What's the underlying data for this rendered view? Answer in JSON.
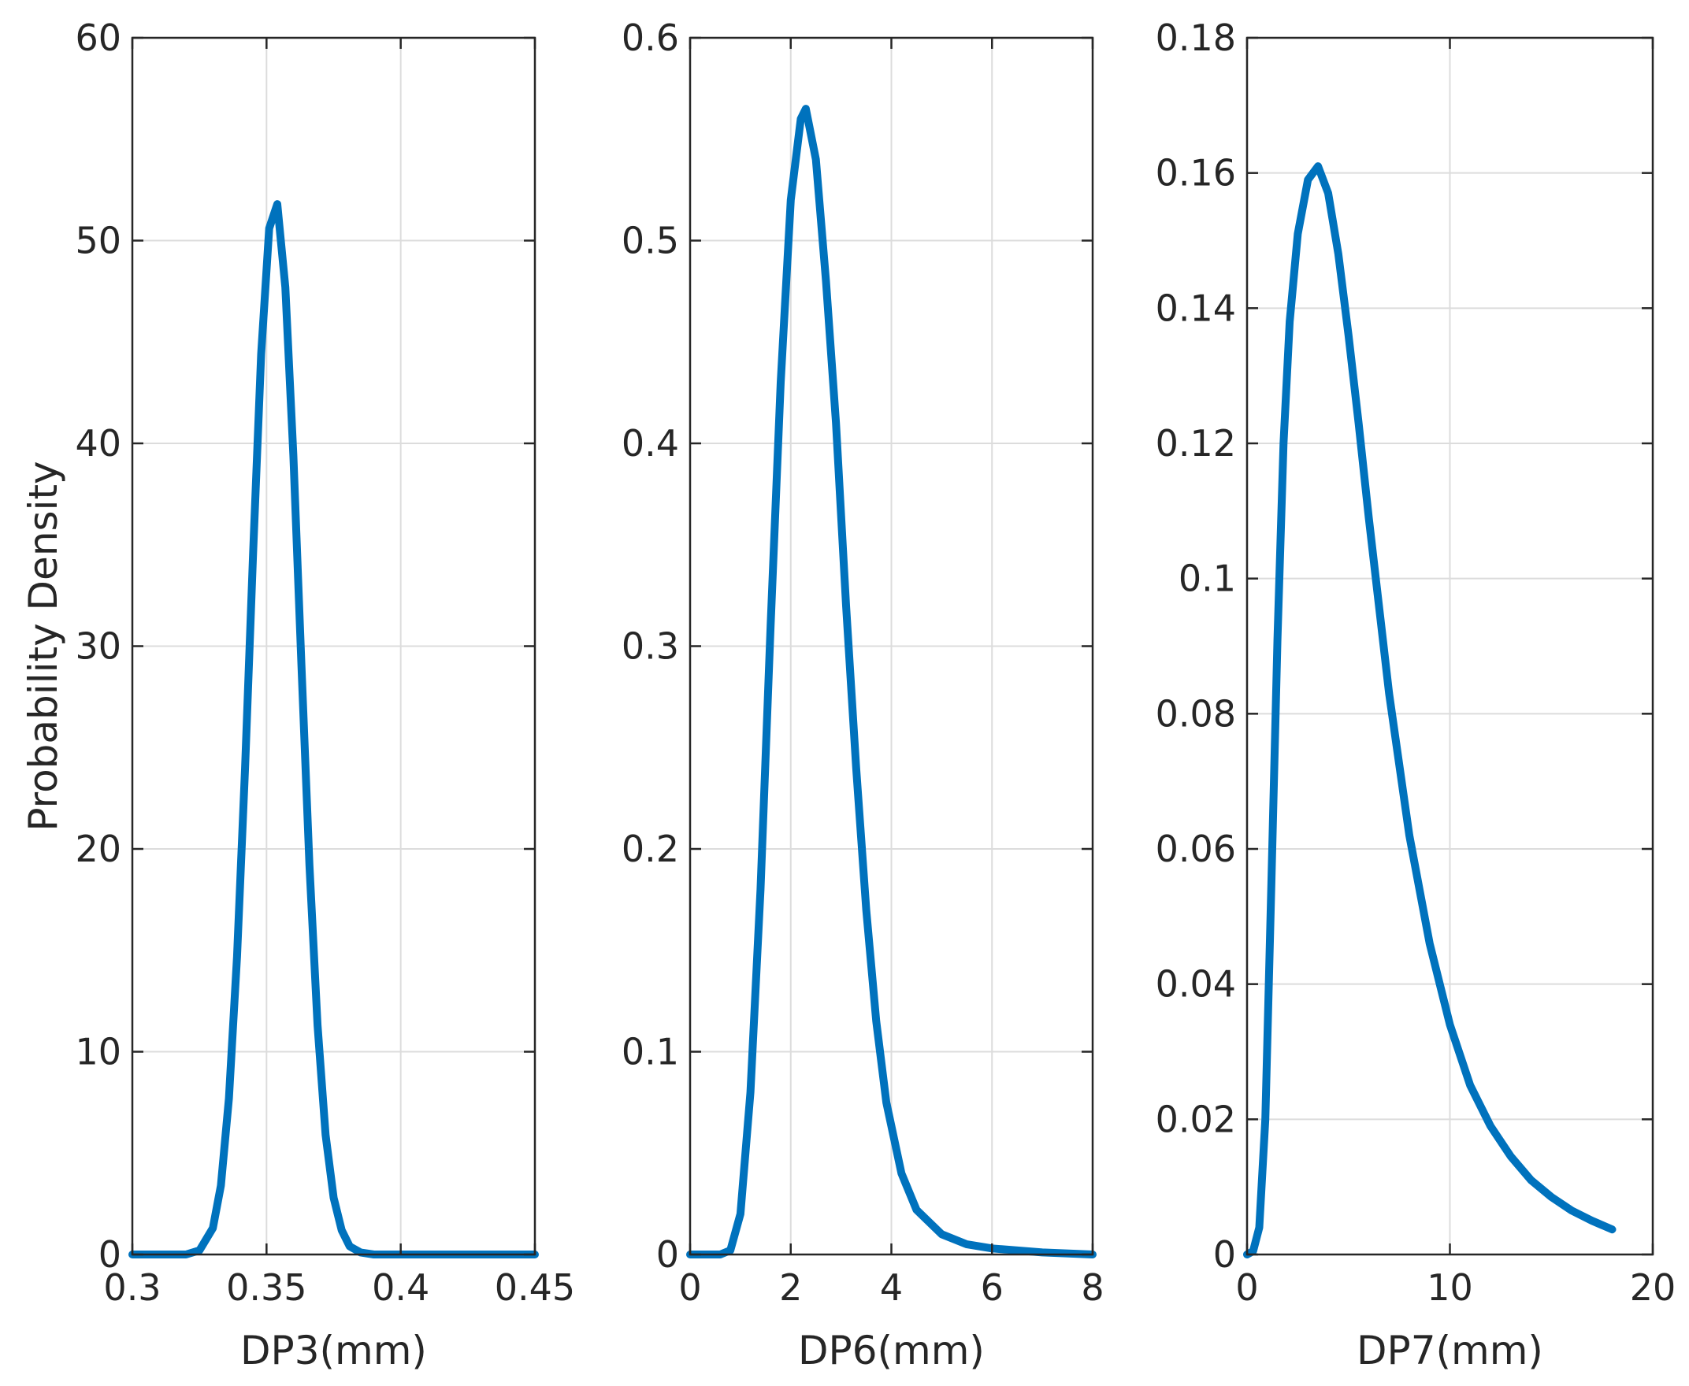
{
  "chart_data": [
    {
      "type": "line",
      "title": "",
      "xlabel": "DP3(mm)",
      "ylabel": "Probability Density",
      "xlim": [
        0.3,
        0.45
      ],
      "ylim": [
        0,
        60
      ],
      "xticks": [
        0.3,
        0.35,
        0.4,
        0.45
      ],
      "xtick_labels": [
        "0.3",
        "0.35",
        "0.4",
        "0.45"
      ],
      "yticks": [
        0,
        10,
        20,
        30,
        40,
        50,
        60
      ],
      "ytick_labels": [
        "0",
        "10",
        "20",
        "30",
        "40",
        "50",
        "60"
      ],
      "grid": true,
      "color": "#0072BD",
      "series": [
        {
          "x": [
            0.3,
            0.32,
            0.325,
            0.33,
            0.333,
            0.336,
            0.339,
            0.342,
            0.345,
            0.348,
            0.351,
            0.354,
            0.357,
            0.36,
            0.363,
            0.366,
            0.369,
            0.372,
            0.375,
            0.378,
            0.381,
            0.385,
            0.39,
            0.45
          ],
          "y": [
            0,
            0,
            0.2,
            1.3,
            3.4,
            7.7,
            14.7,
            24.0,
            34.6,
            44.4,
            50.6,
            51.8,
            47.7,
            39.4,
            29.1,
            19.2,
            11.3,
            5.9,
            2.8,
            1.2,
            0.4,
            0.1,
            0,
            0
          ]
        }
      ]
    },
    {
      "type": "line",
      "title": "",
      "xlabel": "DP6(mm)",
      "ylabel": "",
      "xlim": [
        0,
        8
      ],
      "ylim": [
        0,
        0.6
      ],
      "xticks": [
        0,
        2,
        4,
        6,
        8
      ],
      "xtick_labels": [
        "0",
        "2",
        "4",
        "6",
        "8"
      ],
      "yticks": [
        0,
        0.1,
        0.2,
        0.3,
        0.4,
        0.5,
        0.6
      ],
      "ytick_labels": [
        "0",
        "0.1",
        "0.2",
        "0.3",
        "0.4",
        "0.5",
        "0.6"
      ],
      "grid": true,
      "color": "#0072BD",
      "series": [
        {
          "x": [
            0,
            0.6,
            0.8,
            1.0,
            1.2,
            1.4,
            1.6,
            1.8,
            2.0,
            2.2,
            2.3,
            2.5,
            2.7,
            2.9,
            3.1,
            3.3,
            3.5,
            3.7,
            3.9,
            4.2,
            4.5,
            5.0,
            5.5,
            6.0,
            7.0,
            8.0
          ],
          "y": [
            0,
            0.0,
            0.002,
            0.02,
            0.08,
            0.18,
            0.31,
            0.43,
            0.52,
            0.56,
            0.565,
            0.54,
            0.48,
            0.41,
            0.32,
            0.24,
            0.17,
            0.115,
            0.075,
            0.04,
            0.022,
            0.01,
            0.005,
            0.003,
            0.001,
            0
          ]
        }
      ]
    },
    {
      "type": "line",
      "title": "",
      "xlabel": "DP7(mm)",
      "ylabel": "",
      "xlim": [
        0,
        20
      ],
      "ylim": [
        0,
        0.18
      ],
      "xticks": [
        0,
        10,
        20
      ],
      "xtick_labels": [
        "0",
        "10",
        "20"
      ],
      "yticks": [
        0,
        0.02,
        0.04,
        0.06,
        0.08,
        0.1,
        0.12,
        0.14,
        0.16,
        0.18
      ],
      "ytick_labels": [
        "0",
        "0.02",
        "0.04",
        "0.06",
        "0.08",
        "0.1",
        "0.12",
        "0.14",
        "0.16",
        "0.18"
      ],
      "grid": true,
      "color": "#0072BD",
      "series": [
        {
          "x": [
            0.0,
            0.3,
            0.6,
            0.9,
            1.2,
            1.5,
            1.8,
            2.1,
            2.5,
            3.0,
            3.5,
            4.0,
            4.5,
            5.0,
            5.5,
            6.0,
            7.0,
            8.0,
            9.0,
            10.0,
            11.0,
            12.0,
            13.0,
            14.0,
            15.0,
            16.0,
            17.0,
            18.0
          ],
          "y": [
            0.0,
            0.0005,
            0.004,
            0.02,
            0.055,
            0.091,
            0.12,
            0.138,
            0.151,
            0.159,
            0.161,
            0.157,
            0.148,
            0.136,
            0.123,
            0.109,
            0.083,
            0.062,
            0.046,
            0.034,
            0.025,
            0.019,
            0.0145,
            0.011,
            0.0085,
            0.0065,
            0.005,
            0.0037
          ]
        }
      ]
    }
  ]
}
